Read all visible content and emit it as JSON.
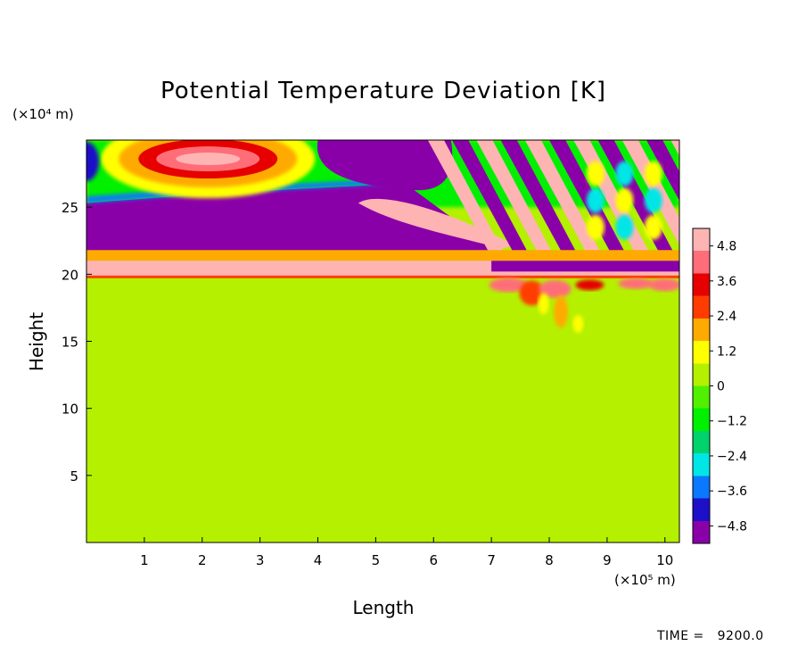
{
  "chart_data": {
    "type": "heatmap",
    "title": "Potential Temperature Deviation [K]",
    "xlabel": "Length",
    "ylabel": "Height",
    "x_unit": "(×10⁵ m)",
    "y_unit": "(×10⁴ m)",
    "xlim": [
      0,
      10.25
    ],
    "ylim": [
      0,
      30
    ],
    "x_ticks": [
      "1",
      "2",
      "3",
      "4",
      "5",
      "6",
      "7",
      "8",
      "9",
      "10"
    ],
    "y_ticks": [
      "5",
      "10",
      "15",
      "20",
      "25"
    ],
    "colorbar": {
      "min": -5.4,
      "max": 5.4,
      "ticks": [
        "4.8",
        "3.6",
        "2.4",
        "1.2",
        "0",
        "−1.2",
        "−2.4",
        "−3.6",
        "−4.8"
      ],
      "colors": [
        "#8a00a8",
        "#1e10c8",
        "#0a78ff",
        "#00e6e6",
        "#00d26e",
        "#00f000",
        "#50f000",
        "#b4f000",
        "#ffff00",
        "#ffaa00",
        "#ff3c00",
        "#e60000",
        "#ff6e78",
        "#ffb4b4"
      ]
    },
    "regions": [
      {
        "feature": "near-zero background",
        "x": [
          0,
          10.25
        ],
        "y": [
          0,
          19.8
        ],
        "value": 0.0
      },
      {
        "feature": "warm band",
        "x": [
          0,
          10.25
        ],
        "y": [
          19.8,
          21.0
        ],
        "value": 5.0
      },
      {
        "feature": "thin transition band",
        "x": [
          0,
          10.25
        ],
        "y": [
          21.0,
          21.8
        ],
        "value": 2.0
      },
      {
        "feature": "cold layer",
        "x": [
          0,
          7.0
        ],
        "y": [
          21.8,
          25.0
        ],
        "value": -5.0
      },
      {
        "feature": "warm tongue",
        "x": [
          4.8,
          7.0
        ],
        "y": [
          22.5,
          25.8
        ],
        "value": 5.0
      },
      {
        "feature": "warm core",
        "x": [
          1.2,
          3.0
        ],
        "y": [
          27.2,
          30.0
        ],
        "value": 4.0
      },
      {
        "feature": "cold lobe",
        "x": [
          4.0,
          6.2
        ],
        "y": [
          26.0,
          30.0
        ],
        "value": -5.0
      },
      {
        "feature": "wave train of alternating anomalies",
        "x": [
          6.0,
          10.25
        ],
        "y": [
          20.3,
          30.0
        ],
        "value": 5.0
      },
      {
        "feature": "turbulent warm patches",
        "x": [
          7.0,
          10.25
        ],
        "y": [
          15.5,
          19.8
        ],
        "value": 4.0
      }
    ]
  },
  "footer": {
    "time_text": "TIME =   9200.0"
  }
}
